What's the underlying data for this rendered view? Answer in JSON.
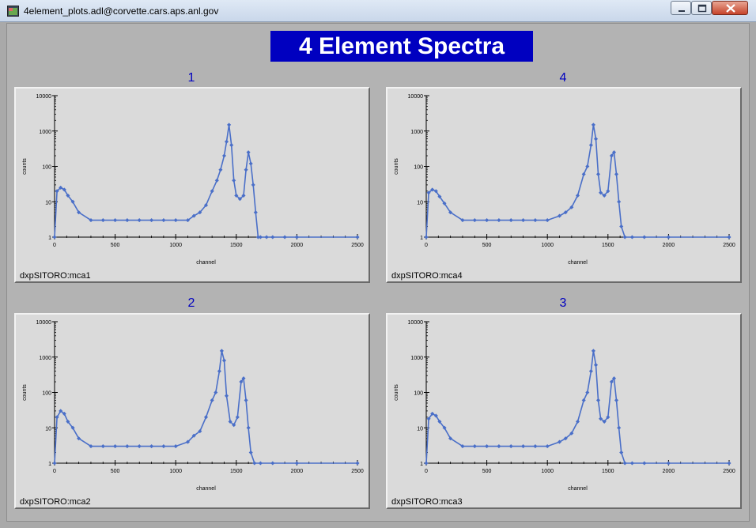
{
  "window": {
    "title": "4element_plots.adl@corvette.cars.aps.anl.gov"
  },
  "display": {
    "title": "4 Element Spectra"
  },
  "axes": {
    "xlabel": "channel",
    "ylabel": "counts",
    "xticks": [
      "0",
      "500",
      "1000",
      "1500",
      "2000",
      "2500"
    ],
    "yticks": [
      "1",
      "10",
      "100",
      "1000",
      "10000"
    ]
  },
  "plots": [
    {
      "label": "1",
      "pv": "dxpSITORO:mca1"
    },
    {
      "label": "4",
      "pv": "dxpSITORO:mca4"
    },
    {
      "label": "2",
      "pv": "dxpSITORO:mca2"
    },
    {
      "label": "3",
      "pv": "dxpSITORO:mca3"
    }
  ],
  "colors": {
    "trace": "#4a6fc8",
    "title_bg": "#0000c0",
    "label": "#0000c0"
  },
  "chart_data": [
    {
      "type": "line",
      "xlabel": "channel",
      "ylabel": "counts",
      "xlim": [
        0,
        2500
      ],
      "ylim": [
        1,
        10000
      ],
      "yscale": "log",
      "grid": false,
      "legend": "none",
      "x": [
        0,
        20,
        50,
        80,
        110,
        150,
        200,
        300,
        400,
        500,
        600,
        700,
        800,
        900,
        1000,
        1100,
        1150,
        1200,
        1250,
        1300,
        1340,
        1370,
        1400,
        1420,
        1440,
        1460,
        1480,
        1500,
        1530,
        1560,
        1580,
        1600,
        1620,
        1640,
        1660,
        1680,
        1700,
        1750,
        1800,
        1900,
        2000,
        2500
      ],
      "values": [
        1,
        20,
        25,
        22,
        15,
        10,
        5,
        3,
        3,
        3,
        3,
        3,
        3,
        3,
        3,
        3,
        4,
        5,
        8,
        20,
        40,
        80,
        200,
        500,
        1500,
        400,
        40,
        15,
        12,
        15,
        80,
        250,
        120,
        30,
        5,
        1,
        1,
        1,
        1,
        1,
        1,
        1
      ]
    },
    {
      "type": "line",
      "xlabel": "channel",
      "ylabel": "counts",
      "xlim": [
        0,
        2500
      ],
      "ylim": [
        1,
        10000
      ],
      "yscale": "log",
      "grid": false,
      "legend": "none",
      "x": [
        0,
        20,
        50,
        80,
        110,
        150,
        200,
        300,
        400,
        500,
        600,
        700,
        800,
        900,
        1000,
        1100,
        1150,
        1200,
        1250,
        1300,
        1330,
        1360,
        1380,
        1400,
        1420,
        1440,
        1470,
        1500,
        1530,
        1550,
        1570,
        1590,
        1610,
        1640,
        1700,
        1800,
        2000,
        2500
      ],
      "values": [
        1,
        18,
        22,
        20,
        14,
        9,
        5,
        3,
        3,
        3,
        3,
        3,
        3,
        3,
        3,
        4,
        5,
        7,
        15,
        60,
        100,
        400,
        1500,
        600,
        60,
        18,
        15,
        20,
        200,
        250,
        60,
        10,
        2,
        1,
        1,
        1,
        1,
        1
      ]
    },
    {
      "type": "line",
      "xlabel": "channel",
      "ylabel": "counts",
      "xlim": [
        0,
        2500
      ],
      "ylim": [
        1,
        10000
      ],
      "yscale": "log",
      "grid": false,
      "legend": "none",
      "x": [
        0,
        20,
        50,
        80,
        110,
        150,
        200,
        300,
        400,
        500,
        600,
        700,
        800,
        900,
        1000,
        1100,
        1150,
        1200,
        1250,
        1300,
        1330,
        1360,
        1380,
        1400,
        1420,
        1450,
        1480,
        1510,
        1540,
        1560,
        1580,
        1600,
        1620,
        1650,
        1700,
        1800,
        2000,
        2500
      ],
      "values": [
        1,
        20,
        30,
        25,
        15,
        10,
        5,
        3,
        3,
        3,
        3,
        3,
        3,
        3,
        3,
        4,
        6,
        8,
        20,
        60,
        100,
        400,
        1500,
        800,
        80,
        15,
        12,
        20,
        200,
        250,
        60,
        10,
        2,
        1,
        1,
        1,
        1,
        1
      ]
    },
    {
      "type": "line",
      "xlabel": "channel",
      "ylabel": "counts",
      "xlim": [
        0,
        2500
      ],
      "ylim": [
        1,
        10000
      ],
      "yscale": "log",
      "grid": false,
      "legend": "none",
      "x": [
        0,
        20,
        50,
        80,
        110,
        150,
        200,
        300,
        400,
        500,
        600,
        700,
        800,
        900,
        1000,
        1100,
        1150,
        1200,
        1250,
        1300,
        1330,
        1360,
        1380,
        1400,
        1420,
        1440,
        1470,
        1500,
        1530,
        1550,
        1570,
        1590,
        1610,
        1640,
        1700,
        1800,
        2000,
        2500
      ],
      "values": [
        1,
        18,
        25,
        22,
        15,
        10,
        5,
        3,
        3,
        3,
        3,
        3,
        3,
        3,
        3,
        4,
        5,
        7,
        15,
        60,
        100,
        400,
        1500,
        600,
        60,
        18,
        15,
        20,
        200,
        250,
        60,
        10,
        2,
        1,
        1,
        1,
        1,
        1
      ]
    }
  ]
}
